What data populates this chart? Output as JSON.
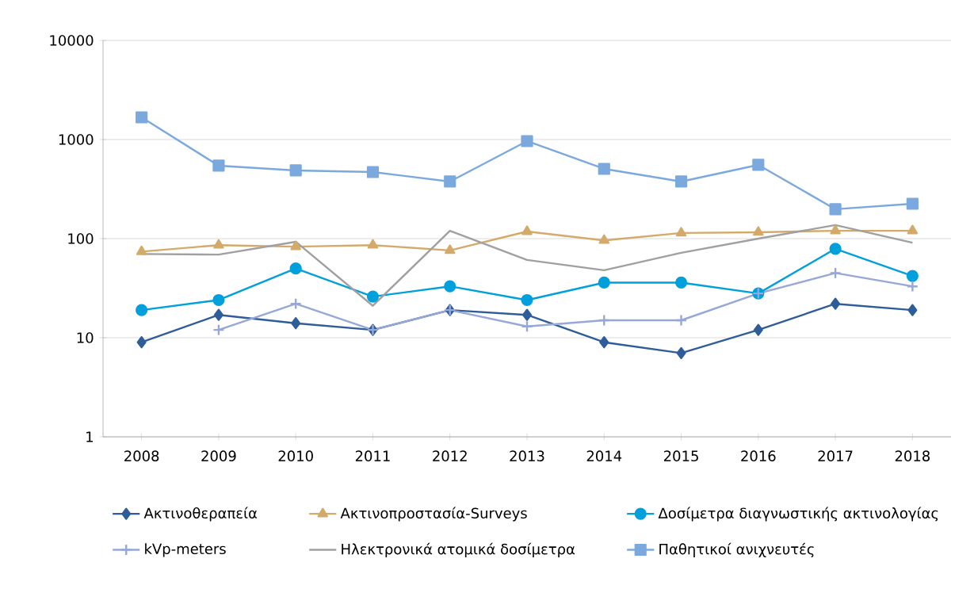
{
  "chart_data": {
    "type": "line",
    "log": "y",
    "grid": "y",
    "legend": "bottom",
    "categories": [
      "2008",
      "2009",
      "2010",
      "2011",
      "2012",
      "2013",
      "2014",
      "2015",
      "2016",
      "2017",
      "2018"
    ],
    "ylim": [
      1,
      10000
    ],
    "yticks": [
      1,
      10,
      100,
      1000,
      10000
    ],
    "series": [
      {
        "name": "Ακτινοθεραπεία",
        "color": "#2e5d9a",
        "marker": "diamond",
        "values": [
          9,
          17,
          14,
          12,
          19,
          17,
          9,
          7,
          12,
          22,
          19
        ]
      },
      {
        "name": "Ακτινοπροστασία-Surveys",
        "color": "#d4aa6a",
        "marker": "triangle",
        "values": [
          74,
          86,
          83,
          86,
          76,
          118,
          96,
          114,
          116,
          120,
          120
        ]
      },
      {
        "name": "Δοσίμετρα διαγνωστικής ακτινολογίας",
        "color": "#00a0dc",
        "marker": "circle",
        "values": [
          19,
          24,
          50,
          26,
          33,
          24,
          36,
          36,
          28,
          79,
          42
        ]
      },
      {
        "name": "kVp-meters",
        "color": "#97a8d8",
        "marker": "cross",
        "values": [
          null,
          12,
          22,
          12,
          19,
          13,
          15,
          15,
          28,
          45,
          33
        ]
      },
      {
        "name": "Ηλεκτρονικά ατομικά δοσίμετρα",
        "color": "#a0a0a0",
        "marker": "none",
        "values": [
          70,
          69,
          93,
          21,
          120,
          61,
          48,
          72,
          100,
          137,
          91
        ]
      },
      {
        "name": "Παθητικοί ανιχνευτές",
        "color": "#7ba9de",
        "marker": "square",
        "values": [
          1675,
          545,
          488,
          470,
          377,
          964,
          506,
          377,
          555,
          198,
          225
        ]
      }
    ]
  }
}
